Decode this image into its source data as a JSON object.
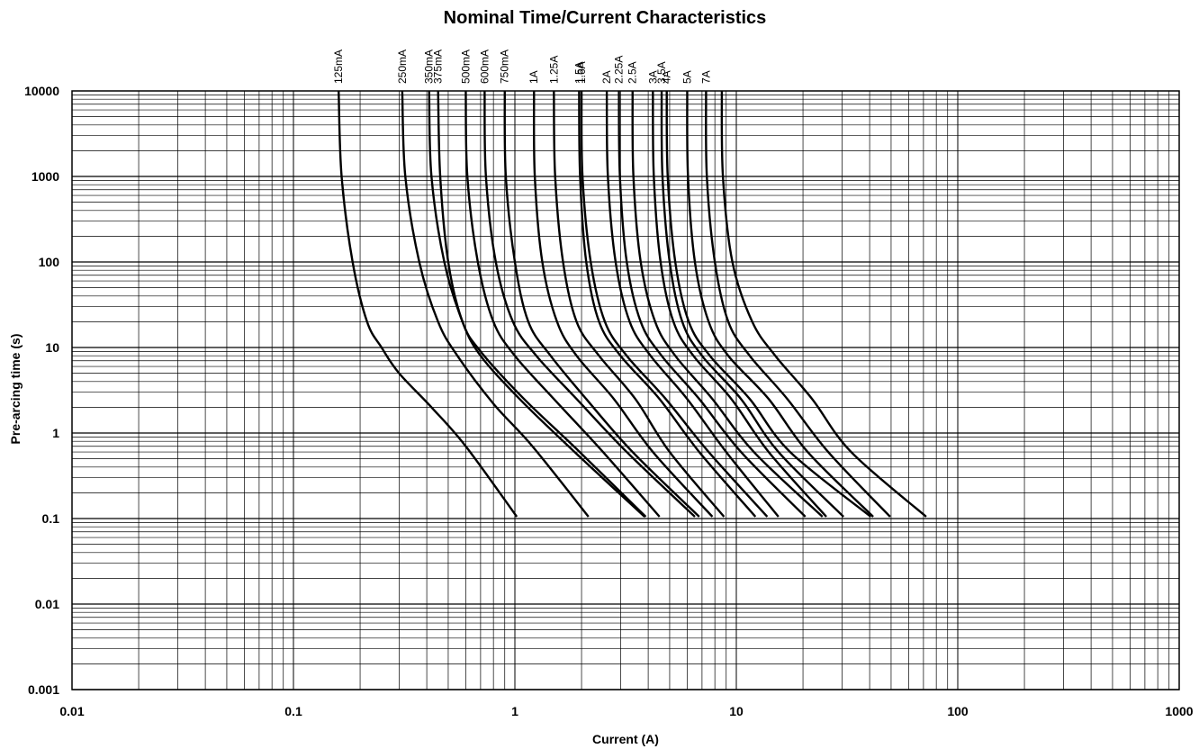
{
  "chart_data": {
    "type": "line",
    "title": "Nominal Time/Current Characteristics",
    "xlabel": "Current (A)",
    "ylabel": "Pre-arcing time (s)",
    "x_scale": "log",
    "y_scale": "log",
    "xlim": [
      0.01,
      1000
    ],
    "ylim": [
      0.001,
      10000
    ],
    "x_ticks": [
      "0.01",
      "0.1",
      "1",
      "10",
      "100",
      "1000"
    ],
    "y_ticks": [
      "0.001",
      "0.01",
      "0.1",
      "1",
      "10",
      "100",
      "1000",
      "10000"
    ],
    "grid": true,
    "legend": "none (series labelled at top of each curve)",
    "series": [
      {
        "name": "125mA",
        "points": [
          [
            0.16,
            10000
          ],
          [
            0.165,
            1000
          ],
          [
            0.185,
            100
          ],
          [
            0.215,
            20
          ],
          [
            0.25,
            10
          ],
          [
            0.3,
            5
          ],
          [
            0.42,
            2
          ],
          [
            0.6,
            0.7
          ],
          [
            1.02,
            0.105
          ]
        ]
      },
      {
        "name": "250mA",
        "points": [
          [
            0.31,
            10000
          ],
          [
            0.32,
            1000
          ],
          [
            0.37,
            100
          ],
          [
            0.45,
            20
          ],
          [
            0.55,
            8
          ],
          [
            0.8,
            2.2
          ],
          [
            1.2,
            0.7
          ],
          [
            2.15,
            0.105
          ]
        ]
      },
      {
        "name": "350mA",
        "points": [
          [
            0.41,
            10000
          ],
          [
            0.42,
            1000
          ],
          [
            0.48,
            100
          ],
          [
            0.58,
            20
          ],
          [
            0.7,
            8
          ],
          [
            1.05,
            2.5
          ],
          [
            1.8,
            0.65
          ],
          [
            3.85,
            0.105
          ]
        ]
      },
      {
        "name": "375mA",
        "points": [
          [
            0.45,
            10000
          ],
          [
            0.46,
            1000
          ],
          [
            0.5,
            100
          ],
          [
            0.58,
            20
          ],
          [
            0.7,
            9
          ],
          [
            1.1,
            2.5
          ],
          [
            1.9,
            0.65
          ],
          [
            3.9,
            0.105
          ]
        ]
      },
      {
        "name": "500mA",
        "points": [
          [
            0.6,
            10000
          ],
          [
            0.61,
            1000
          ],
          [
            0.68,
            100
          ],
          [
            0.8,
            20
          ],
          [
            1.0,
            8
          ],
          [
            1.5,
            2.5
          ],
          [
            2.5,
            0.6
          ],
          [
            4.5,
            0.105
          ]
        ]
      },
      {
        "name": "600mA",
        "points": [
          [
            0.73,
            10000
          ],
          [
            0.74,
            1000
          ],
          [
            0.82,
            100
          ],
          [
            0.98,
            20
          ],
          [
            1.25,
            8
          ],
          [
            1.9,
            2.5
          ],
          [
            3.2,
            0.6
          ],
          [
            6.5,
            0.105
          ]
        ]
      },
      {
        "name": "750mA",
        "points": [
          [
            0.9,
            10000
          ],
          [
            0.91,
            1000
          ],
          [
            1.0,
            100
          ],
          [
            1.15,
            20
          ],
          [
            1.45,
            8
          ],
          [
            2.1,
            2.5
          ],
          [
            3.4,
            0.6
          ],
          [
            6.8,
            0.105
          ]
        ]
      },
      {
        "name": "1A",
        "points": [
          [
            1.22,
            10000
          ],
          [
            1.23,
            1000
          ],
          [
            1.33,
            100
          ],
          [
            1.55,
            20
          ],
          [
            1.9,
            8
          ],
          [
            2.8,
            2.5
          ],
          [
            4.2,
            0.6
          ],
          [
            7.8,
            0.105
          ]
        ]
      },
      {
        "name": "1.25A",
        "points": [
          [
            1.5,
            10000
          ],
          [
            1.52,
            1000
          ],
          [
            1.65,
            100
          ],
          [
            1.9,
            20
          ],
          [
            2.4,
            8
          ],
          [
            3.5,
            2.5
          ],
          [
            5.0,
            0.6
          ],
          [
            8.8,
            0.105
          ]
        ]
      },
      {
        "name": "1.5A",
        "points": [
          [
            1.95,
            10000
          ],
          [
            1.97,
            1000
          ],
          [
            2.1,
            100
          ],
          [
            2.4,
            20
          ],
          [
            3.0,
            8
          ],
          [
            4.5,
            2.5
          ],
          [
            6.8,
            0.6
          ],
          [
            12.2,
            0.105
          ]
        ]
      },
      {
        "name": "1.6A",
        "points": [
          [
            2.0,
            10000
          ],
          [
            2.02,
            1000
          ],
          [
            2.2,
            100
          ],
          [
            2.55,
            20
          ],
          [
            3.2,
            8
          ],
          [
            4.8,
            2.5
          ],
          [
            7.5,
            0.6
          ],
          [
            13.8,
            0.105
          ]
        ]
      },
      {
        "name": "2A",
        "points": [
          [
            2.6,
            10000
          ],
          [
            2.63,
            1000
          ],
          [
            2.85,
            100
          ],
          [
            3.3,
            20
          ],
          [
            4.1,
            8
          ],
          [
            6.0,
            2.5
          ],
          [
            9.0,
            0.6
          ],
          [
            15.5,
            0.105
          ]
        ]
      },
      {
        "name": "2.25A",
        "points": [
          [
            2.95,
            10000
          ],
          [
            2.98,
            1000
          ],
          [
            3.2,
            100
          ],
          [
            3.7,
            20
          ],
          [
            4.6,
            8
          ],
          [
            6.8,
            2.5
          ],
          [
            10.5,
            0.6
          ],
          [
            20.5,
            0.105
          ]
        ]
      },
      {
        "name": "2.5A",
        "points": [
          [
            3.4,
            10000
          ],
          [
            3.43,
            1000
          ],
          [
            3.7,
            100
          ],
          [
            4.3,
            20
          ],
          [
            5.3,
            8
          ],
          [
            7.8,
            2.5
          ],
          [
            12.0,
            0.6
          ],
          [
            24.5,
            0.105
          ]
        ]
      },
      {
        "name": "3A",
        "points": [
          [
            4.2,
            10000
          ],
          [
            4.24,
            1000
          ],
          [
            4.55,
            100
          ],
          [
            5.2,
            20
          ],
          [
            6.4,
            8
          ],
          [
            9.5,
            2.5
          ],
          [
            14.0,
            0.6
          ],
          [
            25.5,
            0.105
          ]
        ]
      },
      {
        "name": "3.5A",
        "points": [
          [
            4.6,
            10000
          ],
          [
            4.64,
            1000
          ],
          [
            5.0,
            100
          ],
          [
            5.7,
            20
          ],
          [
            7.0,
            8
          ],
          [
            10.5,
            2.5
          ],
          [
            15.5,
            0.6
          ],
          [
            30.5,
            0.105
          ]
        ]
      },
      {
        "name": "4A",
        "points": [
          [
            4.85,
            10000
          ],
          [
            4.9,
            1000
          ],
          [
            5.3,
            100
          ],
          [
            6.1,
            20
          ],
          [
            7.6,
            8
          ],
          [
            11.5,
            2.5
          ],
          [
            17.5,
            0.6
          ],
          [
            40.5,
            0.105
          ]
        ]
      },
      {
        "name": "5A",
        "points": [
          [
            6.0,
            10000
          ],
          [
            6.05,
            1000
          ],
          [
            6.5,
            100
          ],
          [
            7.5,
            20
          ],
          [
            9.2,
            8
          ],
          [
            14.0,
            2.5
          ],
          [
            21.0,
            0.6
          ],
          [
            41.5,
            0.105
          ]
        ]
      },
      {
        "name": "7A",
        "points": [
          [
            7.3,
            10000
          ],
          [
            7.36,
            1000
          ],
          [
            8.0,
            100
          ],
          [
            9.2,
            20
          ],
          [
            11.5,
            8
          ],
          [
            17.0,
            2.5
          ],
          [
            26.0,
            0.6
          ],
          [
            49.5,
            0.105
          ]
        ]
      },
      {
        "name": "",
        "points": [
          [
            8.6,
            10000
          ],
          [
            8.7,
            1000
          ],
          [
            9.6,
            100
          ],
          [
            11.8,
            20
          ],
          [
            15.0,
            8
          ],
          [
            22.0,
            2.5
          ],
          [
            33.0,
            0.6
          ],
          [
            72.0,
            0.105
          ]
        ]
      }
    ]
  }
}
